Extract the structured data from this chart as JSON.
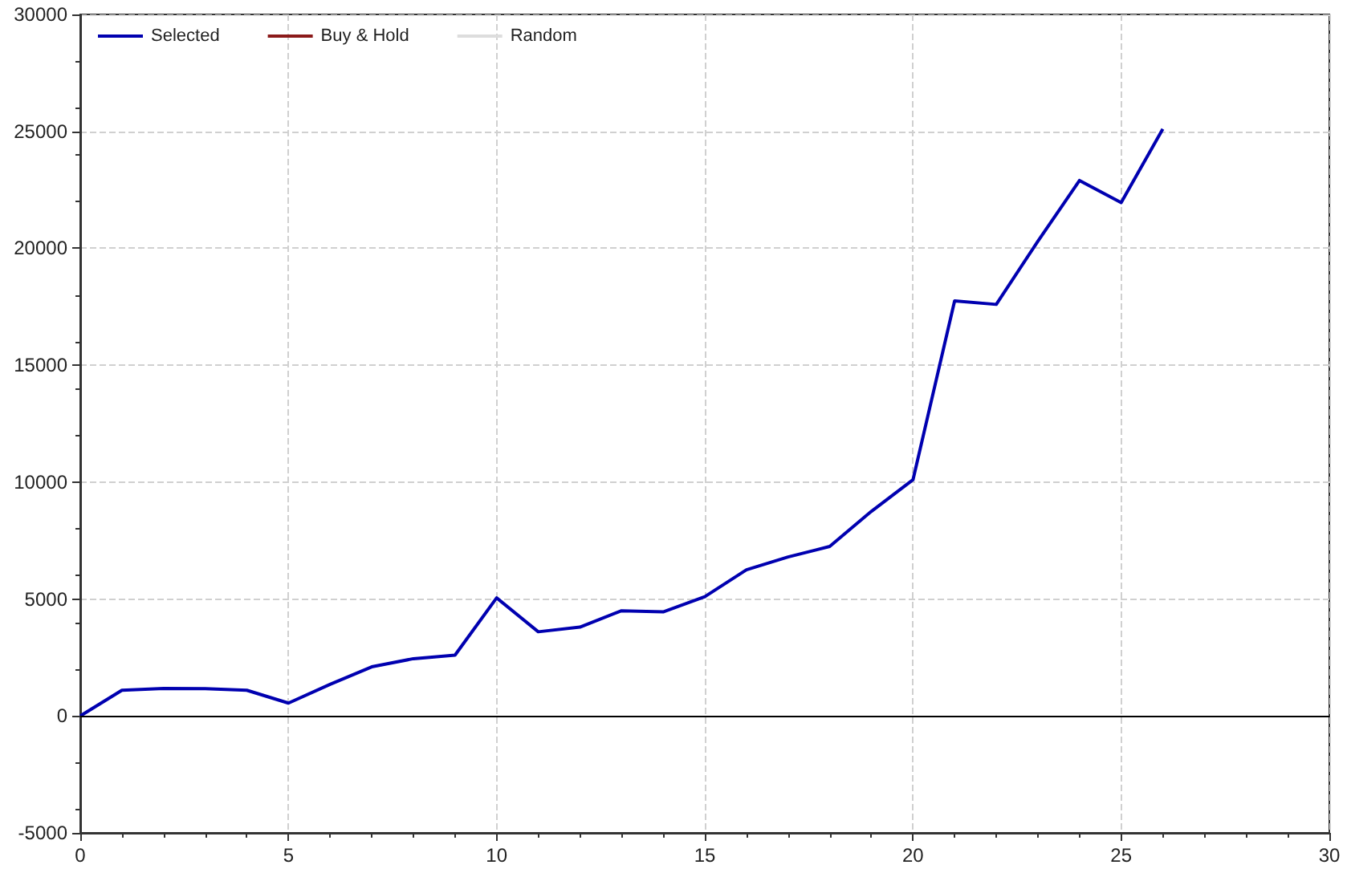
{
  "chart_data": {
    "type": "line",
    "x": [
      0,
      1,
      2,
      3,
      4,
      5,
      6,
      7,
      8,
      9,
      10,
      11,
      12,
      13,
      14,
      15,
      16,
      17,
      18,
      19,
      20,
      21,
      22,
      23,
      24,
      25,
      26
    ],
    "series": [
      {
        "name": "Selected",
        "color": "#0000b0",
        "values": [
          0,
          1100,
          1180,
          1170,
          1100,
          550,
          1350,
          2100,
          2450,
          2600,
          5050,
          3600,
          3800,
          4500,
          4450,
          5100,
          6250,
          6800,
          7250,
          8750,
          10100,
          17750,
          17600,
          20300,
          22900,
          21950,
          25100
        ]
      },
      {
        "name": "Buy & Hold",
        "color": "#8b1a1a",
        "values": [
          null,
          null,
          null,
          null,
          null,
          null,
          null,
          null,
          null,
          null,
          null,
          null,
          null,
          null,
          null,
          null,
          null,
          null,
          null,
          null,
          null,
          null,
          null,
          null,
          null,
          null,
          null
        ]
      },
      {
        "name": "Random",
        "color": "#dddddd",
        "values": [
          null,
          null,
          null,
          null,
          null,
          null,
          null,
          null,
          null,
          null,
          null,
          null,
          null,
          null,
          null,
          null,
          null,
          null,
          null,
          null,
          null,
          null,
          null,
          null,
          null,
          null,
          null
        ]
      }
    ],
    "xlim": [
      0,
      30
    ],
    "xticks": [
      0,
      5,
      10,
      15,
      20,
      25,
      30
    ],
    "ylim": [
      -5000,
      30000
    ],
    "yticks": [
      -5000,
      0,
      5000,
      10000,
      15000,
      20000,
      25000,
      30000
    ],
    "ref_lines": [
      {
        "axis": "y",
        "value": 0,
        "color": "#000000"
      }
    ],
    "grid": true,
    "legend": "top left",
    "marker": "none",
    "line_style": "solid"
  }
}
